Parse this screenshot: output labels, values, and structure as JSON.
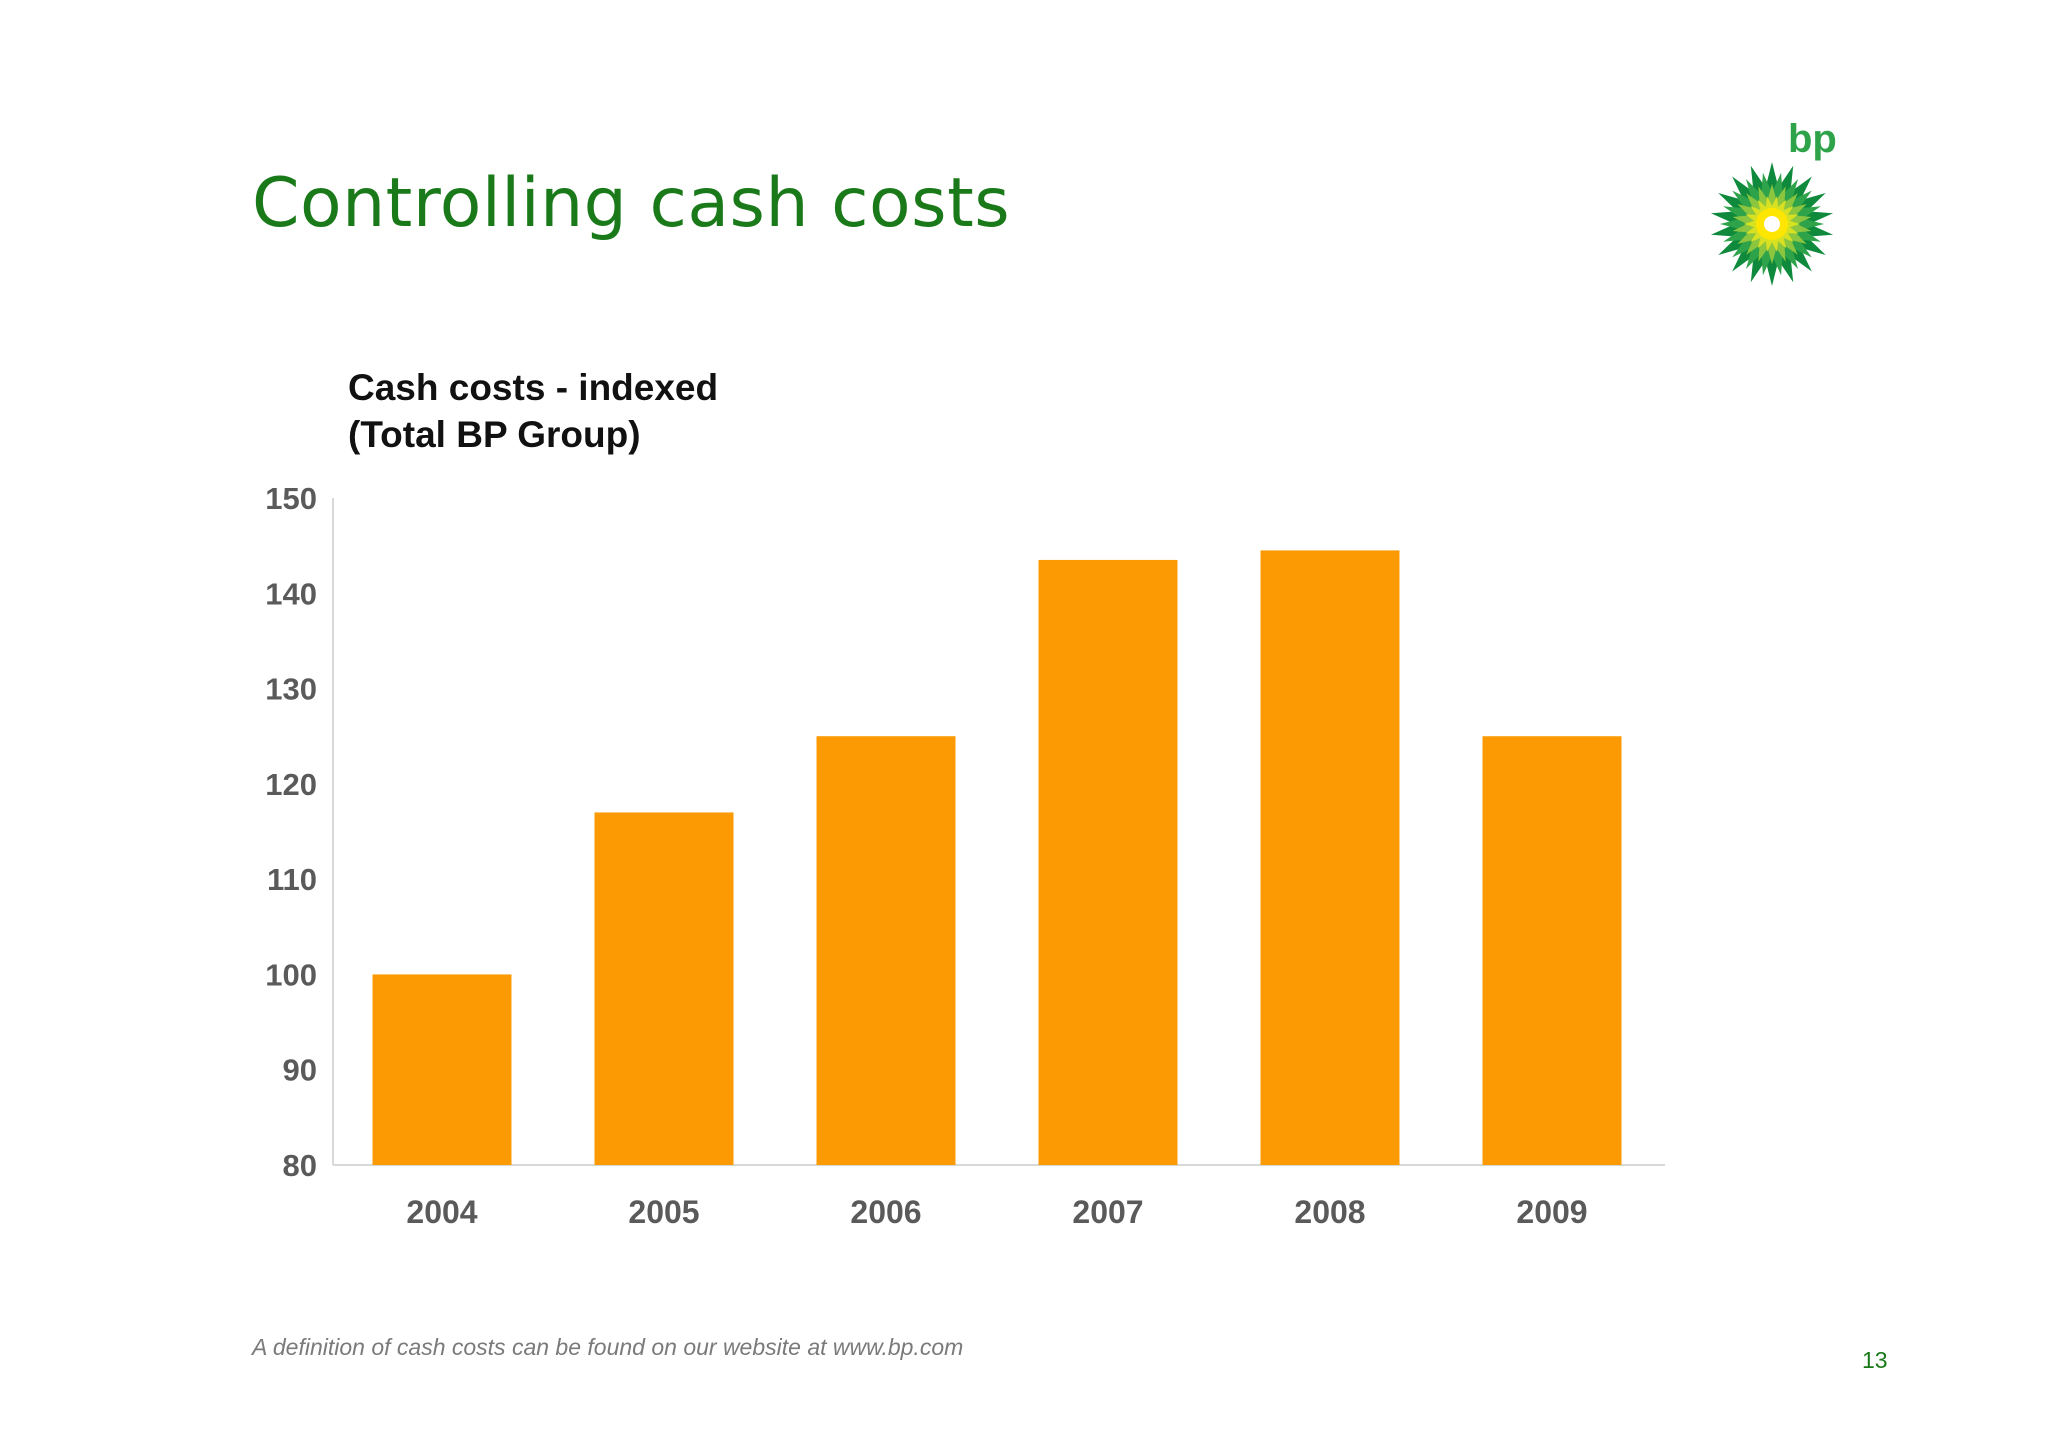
{
  "slide": {
    "title": "Controlling cash costs",
    "footnote": "A definition of cash costs can be found on our website at www.bp.com",
    "page_number": "13",
    "logo_text": "bp"
  },
  "colors": {
    "title_green": "#1a7a1a",
    "bar_orange": "#fc9a04",
    "axis_text": "#5a5a5a",
    "logo_green": "#2ea34a",
    "logo_yellow": "#ffe600"
  },
  "chart_data": {
    "type": "bar",
    "title": "Cash costs - indexed",
    "subtitle": "(Total BP Group)",
    "categories": [
      "2004",
      "2005",
      "2006",
      "2007",
      "2008",
      "2009"
    ],
    "values": [
      100,
      117,
      125,
      143.5,
      144.5,
      125
    ],
    "ylim": [
      80,
      150
    ],
    "yticks": [
      80,
      90,
      100,
      110,
      120,
      130,
      140,
      150
    ],
    "xlabel": "",
    "ylabel": "",
    "grid": false,
    "legend": "none"
  }
}
